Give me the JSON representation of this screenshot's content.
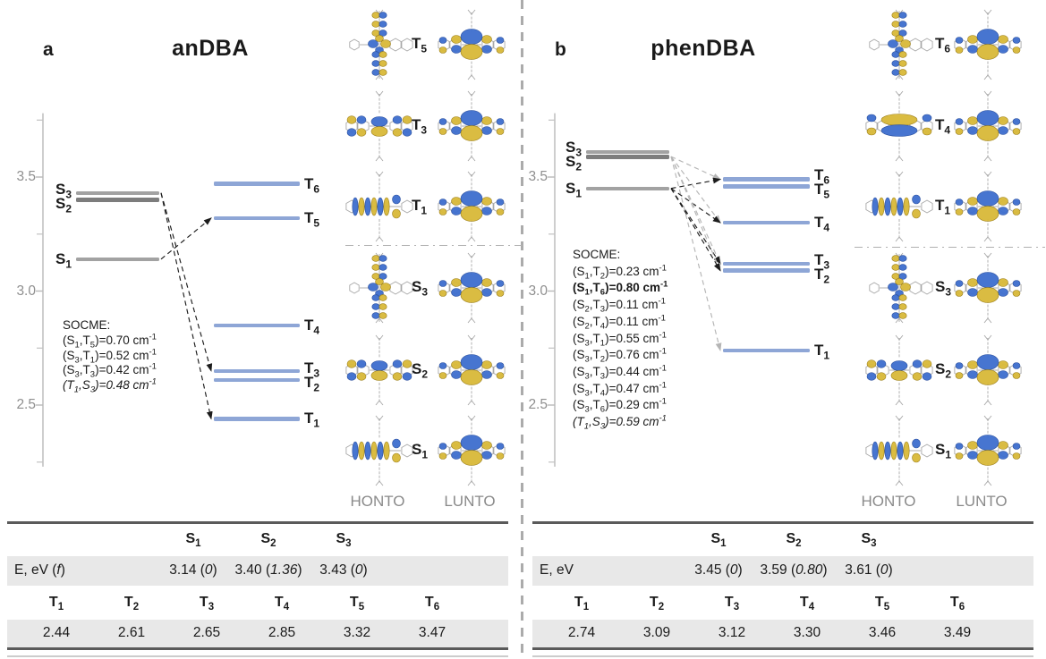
{
  "colors": {
    "singlet": "#a2a2a2",
    "singlet_dark": "#7d7d7d",
    "triplet": "#8ea6d6",
    "arrow_black": "#1c1c1c",
    "arrow_gray": "#b5b5b5",
    "orbital_blue": "#3f6fce",
    "orbital_yellow": "#d9b93a",
    "axis": "#b9b9b9",
    "tick_label": "#8f8f8f",
    "table_shade": "#e8e8e8",
    "table_border": "#5a5a5a",
    "caption_gray": "#8a8a8a"
  },
  "chart_data": [
    {
      "type": "scatter",
      "subtype": "energy-level-diagram",
      "panel": "a",
      "panel_letter": "a",
      "title": "anDBA",
      "ylabel": "E, eV",
      "yaxis": {
        "range": [
          2.23,
          3.78
        ],
        "major": [
          {
            "label": "3.5",
            "value": 3.5
          },
          {
            "label": "3.0",
            "value": 3.0
          },
          {
            "label": "2.5",
            "value": 2.5
          }
        ],
        "minor": [
          3.75,
          3.25,
          2.75,
          2.25
        ]
      },
      "singlets": [
        {
          "label": "S1",
          "energy": 3.14
        },
        {
          "label": "S2",
          "energy": 3.4
        },
        {
          "label": "S3",
          "energy": 3.43
        }
      ],
      "triplets": [
        {
          "label": "T1",
          "energy": 2.44
        },
        {
          "label": "T2",
          "energy": 2.61
        },
        {
          "label": "T3",
          "energy": 2.65
        },
        {
          "label": "T4",
          "energy": 2.85
        },
        {
          "label": "T5",
          "energy": 3.32
        },
        {
          "label": "T6",
          "energy": 3.47
        }
      ],
      "arrows": [
        {
          "from": "S1",
          "to": "T5",
          "style": "black"
        },
        {
          "from": "S3",
          "to": "T3",
          "style": "black"
        },
        {
          "from": "S3",
          "to": "T1",
          "style": "black"
        }
      ],
      "socme": {
        "title": "SOCME:",
        "entries": [
          {
            "text": "(S1,T5)=0.70 cm-1"
          },
          {
            "text": "(S3,T1)=0.52 cm-1"
          },
          {
            "text": "(S3,T3)=0.42 cm-1"
          },
          {
            "text": "(T1,S3)=0.48 cm-1",
            "italic": true
          }
        ]
      }
    },
    {
      "type": "scatter",
      "subtype": "energy-level-diagram",
      "panel": "b",
      "panel_letter": "b",
      "title": "phenDBA",
      "ylabel": "E, eV",
      "yaxis": {
        "range": [
          2.23,
          3.78
        ],
        "major": [
          {
            "label": "3.5",
            "value": 3.5
          },
          {
            "label": "3.0",
            "value": 3.0
          },
          {
            "label": "2.5",
            "value": 2.5
          }
        ],
        "minor": [
          3.75,
          3.25,
          2.75,
          2.25
        ]
      },
      "singlets": [
        {
          "label": "S1",
          "energy": 3.45
        },
        {
          "label": "S2",
          "energy": 3.59
        },
        {
          "label": "S3",
          "energy": 3.61
        }
      ],
      "triplets": [
        {
          "label": "T1",
          "energy": 2.74
        },
        {
          "label": "T2",
          "energy": 3.09
        },
        {
          "label": "T3",
          "energy": 3.12
        },
        {
          "label": "T4",
          "energy": 3.3
        },
        {
          "label": "T5",
          "energy": 3.46
        },
        {
          "label": "T6",
          "energy": 3.49
        }
      ],
      "arrows": [
        {
          "from": "S2",
          "to": "T6",
          "style": "gray"
        },
        {
          "from": "S1",
          "to": "T6",
          "style": "black"
        },
        {
          "from": "S2",
          "to": "T4",
          "style": "gray"
        },
        {
          "from": "S1",
          "to": "T4",
          "style": "black"
        },
        {
          "from": "S2",
          "to": "T3",
          "style": "gray"
        },
        {
          "from": "S1",
          "to": "T3",
          "style": "black"
        },
        {
          "from": "S2",
          "to": "T2",
          "style": "gray"
        },
        {
          "from": "S1",
          "to": "T2",
          "style": "black"
        },
        {
          "from": "S2",
          "to": "T1",
          "style": "gray"
        }
      ],
      "socme": {
        "title": "SOCME:",
        "entries": [
          {
            "text": "(S1,T2)=0.23 cm-1"
          },
          {
            "text": "(S1,T6)=0.80 cm-1",
            "bold": true
          },
          {
            "text": "(S2,T3)=0.11 cm-1"
          },
          {
            "text": "(S2,T4)=0.11 cm-1"
          },
          {
            "text": "(S3,T1)=0.55 cm-1"
          },
          {
            "text": "(S3,T2)=0.76 cm-1"
          },
          {
            "text": "(S3,T3)=0.44 cm-1"
          },
          {
            "text": "(S3,T4)=0.47 cm-1"
          },
          {
            "text": "(S3,T6)=0.29 cm-1"
          },
          {
            "text": "(T1,S3)=0.59 cm-1",
            "italic": true
          }
        ]
      }
    }
  ],
  "orbitals": {
    "honto_label": "HONTO",
    "lunto_label": "LUNTO",
    "panels": [
      {
        "rows": [
          {
            "label": "T5",
            "honto": "cross",
            "lunto": "center"
          },
          {
            "label": "T3",
            "honto": "ring",
            "lunto": "center"
          },
          {
            "label": "T1",
            "honto": "barrel",
            "lunto": "center"
          },
          {
            "label": "S3",
            "honto": "cross",
            "lunto": "center"
          },
          {
            "label": "S2",
            "honto": "ring",
            "lunto": "center"
          },
          {
            "label": "S1",
            "honto": "barrel",
            "lunto": "center"
          }
        ]
      },
      {
        "rows": [
          {
            "label": "T6",
            "honto": "cross",
            "lunto": "center"
          },
          {
            "label": "T4",
            "honto": "stack",
            "lunto": "center"
          },
          {
            "label": "T1",
            "honto": "barrel",
            "lunto": "center"
          },
          {
            "label": "S3",
            "honto": "cross",
            "lunto": "center"
          },
          {
            "label": "S2",
            "honto": "ring",
            "lunto": "center"
          },
          {
            "label": "S1",
            "honto": "barrel",
            "lunto": "center"
          }
        ]
      }
    ]
  },
  "tables": [
    {
      "type": "table",
      "panel": "a",
      "s_headers": [
        "S1",
        "S2",
        "S3"
      ],
      "energy_label": "E, eV (f)",
      "s_values": [
        "3.14 (0)",
        "3.40 (1.36)",
        "3.43 (0)"
      ],
      "t_headers": [
        "T1",
        "T2",
        "T3",
        "T4",
        "T5",
        "T6"
      ],
      "t_values": [
        "2.44",
        "2.61",
        "2.65",
        "2.85",
        "3.32",
        "3.47"
      ]
    },
    {
      "type": "table",
      "panel": "b",
      "s_headers": [
        "S1",
        "S2",
        "S3"
      ],
      "energy_label": "E, eV",
      "s_values": [
        "3.45 (0)",
        "3.59 (0.80)",
        "3.61 (0)"
      ],
      "t_headers": [
        "T1",
        "T2",
        "T3",
        "T4",
        "T5",
        "T6"
      ],
      "t_values": [
        "2.74",
        "3.09",
        "3.12",
        "3.30",
        "3.46",
        "3.49"
      ]
    }
  ]
}
